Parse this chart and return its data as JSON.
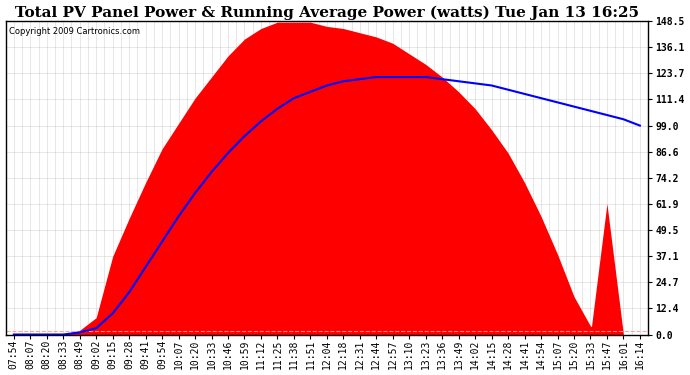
{
  "title": "Total PV Panel Power & Running Average Power (watts) Tue Jan 13 16:25",
  "copyright": "Copyright 2009 Cartronics.com",
  "yticks": [
    0.0,
    12.4,
    24.7,
    37.1,
    49.5,
    61.9,
    74.2,
    86.6,
    99.0,
    111.4,
    123.7,
    136.1,
    148.5
  ],
  "ylim": [
    0.0,
    148.5
  ],
  "xtick_labels": [
    "07:54",
    "08:07",
    "08:20",
    "08:33",
    "08:49",
    "09:02",
    "09:15",
    "09:28",
    "09:41",
    "09:54",
    "10:07",
    "10:20",
    "10:33",
    "10:46",
    "10:59",
    "11:12",
    "11:25",
    "11:38",
    "11:51",
    "12:04",
    "12:18",
    "12:31",
    "12:44",
    "12:57",
    "13:10",
    "13:23",
    "13:36",
    "13:49",
    "14:02",
    "14:15",
    "14:28",
    "14:41",
    "14:54",
    "15:07",
    "15:20",
    "15:33",
    "15:47",
    "16:01",
    "16:14"
  ],
  "area_color": "#FF0000",
  "line_color": "#0000FF",
  "background_color": "#FFFFFF",
  "grid_color": "#AAAAAA",
  "dashed_line_color": "#FF9999",
  "title_fontsize": 11,
  "tick_fontsize": 7,
  "pv_values": [
    0,
    0,
    0,
    0,
    2,
    8,
    37,
    55,
    72,
    88,
    100,
    112,
    122,
    132,
    140,
    145,
    148,
    148,
    148,
    146,
    145,
    143,
    141,
    138,
    133,
    128,
    122,
    115,
    107,
    97,
    86,
    72,
    56,
    38,
    18,
    4,
    0,
    0,
    0
  ],
  "pv_spike": [
    0,
    0,
    0,
    0,
    0,
    0,
    0,
    0,
    0,
    0,
    0,
    0,
    0,
    0,
    0,
    0,
    0,
    0,
    0,
    0,
    0,
    0,
    0,
    0,
    0,
    0,
    0,
    0,
    0,
    0,
    0,
    0,
    0,
    0,
    0,
    0,
    62,
    0,
    0
  ],
  "ravg_values": [
    0,
    0,
    0,
    0,
    1,
    3,
    10,
    20,
    32,
    44,
    56,
    67,
    77,
    86,
    94,
    101,
    107,
    112,
    115,
    118,
    120,
    121,
    122,
    122,
    122,
    122,
    121,
    120,
    119,
    118,
    116,
    114,
    112,
    110,
    108,
    106,
    104,
    102,
    99
  ]
}
